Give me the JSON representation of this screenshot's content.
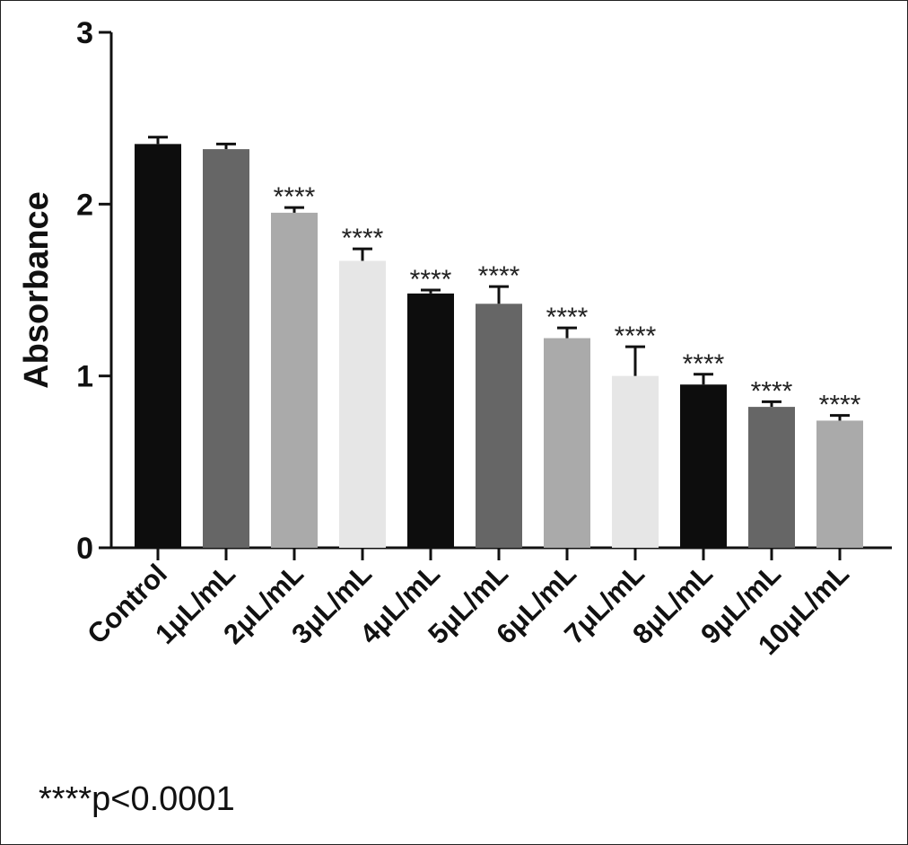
{
  "chart_data": {
    "type": "bar",
    "ylabel": "Absorbance",
    "xlabel": "",
    "title": "",
    "ylim": [
      0,
      3
    ],
    "yticks": [
      0,
      1,
      2,
      3
    ],
    "grid": false,
    "categories": [
      "Control",
      "1μL/mL",
      "2μL/mL",
      "3μL/mL",
      "4μL/mL",
      "5μL/mL",
      "6μL/mL",
      "7μL/mL",
      "8μL/mL",
      "9μL/mL",
      "10μL/mL"
    ],
    "values": [
      2.35,
      2.32,
      1.95,
      1.67,
      1.48,
      1.42,
      1.22,
      1.0,
      0.95,
      0.82,
      0.74
    ],
    "errors": [
      0.04,
      0.03,
      0.03,
      0.07,
      0.02,
      0.1,
      0.06,
      0.17,
      0.06,
      0.03,
      0.03
    ],
    "significance": [
      "",
      "",
      "****",
      "****",
      "****",
      "****",
      "****",
      "****",
      "****",
      "****",
      "****"
    ],
    "colors": [
      "#0d0d0d",
      "#666666",
      "#aaaaaa",
      "#e6e6e6",
      "#0d0d0d",
      "#666666",
      "#aaaaaa",
      "#e6e6e6",
      "#0d0d0d",
      "#666666",
      "#aaaaaa"
    ]
  },
  "footnote": "****p<0.0001"
}
